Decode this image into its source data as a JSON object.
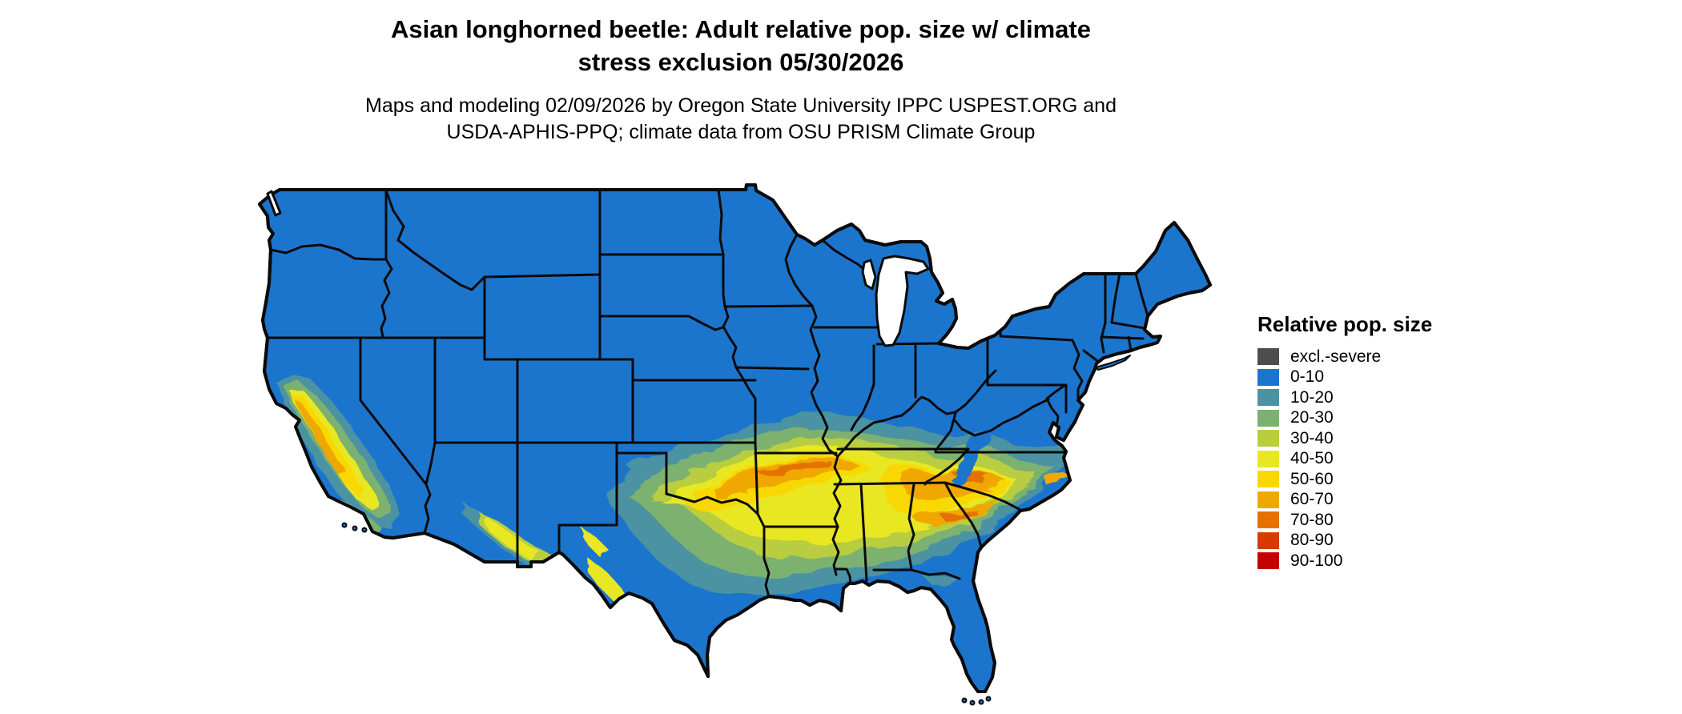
{
  "title": {
    "line1": "Asian longhorned beetle: Adult relative pop. size w/ climate",
    "line2": "stress exclusion 05/30/2026"
  },
  "subtitle": {
    "line1": "Maps and modeling 02/09/2026 by Oregon State University IPPC USPEST.ORG and",
    "line2": "USDA-APHIS-PPQ; climate data from OSU PRISM Climate Group"
  },
  "legend": {
    "title": "Relative pop. size",
    "entries": [
      {
        "label": "excl.-severe",
        "color": "#4d4d4d"
      },
      {
        "label": "0-10",
        "color": "#1c75cd"
      },
      {
        "label": "10-20",
        "color": "#4b93a2"
      },
      {
        "label": "20-30",
        "color": "#7cb16f"
      },
      {
        "label": "30-40",
        "color": "#b8ce3f"
      },
      {
        "label": "40-50",
        "color": "#e9e722"
      },
      {
        "label": "50-60",
        "color": "#f8d800"
      },
      {
        "label": "60-70",
        "color": "#f0a800"
      },
      {
        "label": "70-80",
        "color": "#e57200"
      },
      {
        "label": "80-90",
        "color": "#d63b00"
      },
      {
        "label": "90-100",
        "color": "#c40000"
      }
    ]
  },
  "map": {
    "water_color": "#ffffff",
    "boundary_color": "#000000"
  }
}
